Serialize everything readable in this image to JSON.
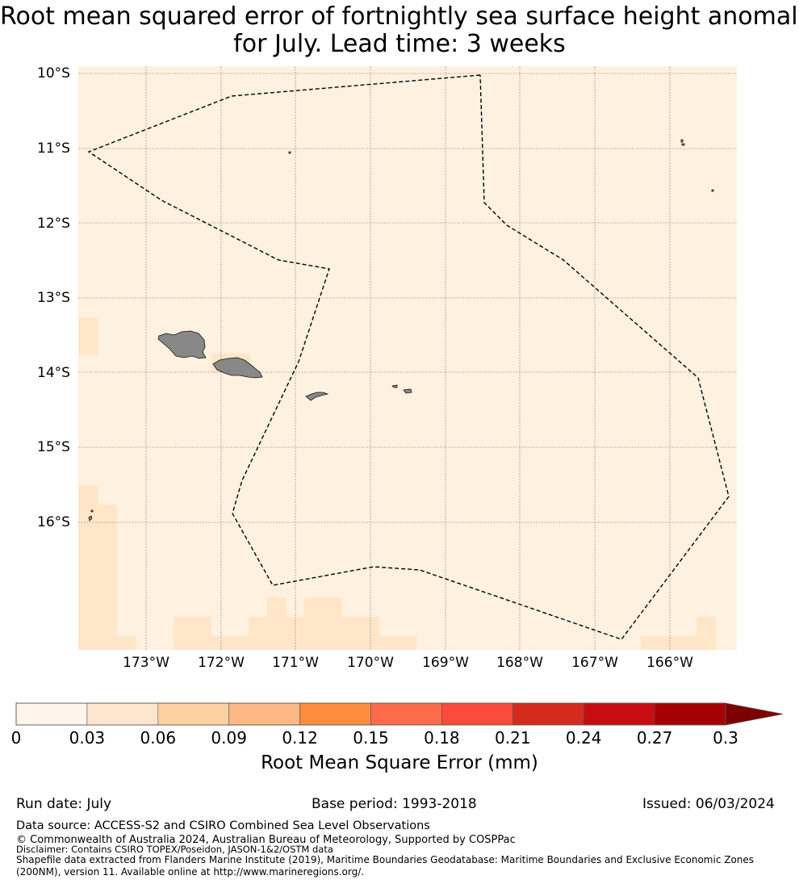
{
  "title": {
    "line1": "Root mean squared error of fortnightly sea surface height anomaly",
    "line2": "for July. Lead time: 3 weeks"
  },
  "map": {
    "lat_labels": [
      "10°S",
      "11°S",
      "12°S",
      "13°S",
      "14°S",
      "15°S",
      "16°S"
    ],
    "lon_labels": [
      "173°W",
      "172°W",
      "171°W",
      "170°W",
      "169°W",
      "168°W",
      "167°W",
      "166°W"
    ],
    "background_color": "#fff1df",
    "land_color": "#888888",
    "boundary_style": "dashed"
  },
  "colorbar": {
    "ticks": [
      "0",
      "0.03",
      "0.06",
      "0.09",
      "0.12",
      "0.15",
      "0.18",
      "0.21",
      "0.24",
      "0.27",
      "0.3"
    ],
    "colors": [
      "#fff5eb",
      "#fee6ce",
      "#fdd0a2",
      "#fdb884",
      "#fd8d3c",
      "#fc6b4c",
      "#fb4b3b",
      "#d52b1e",
      "#c70d12",
      "#a50003"
    ],
    "extend_color": "#7f0000",
    "label": "Root Mean Square Error (mm)"
  },
  "footer": {
    "run_date": "Run date: July",
    "base_period": "Base period: 1993-2018",
    "issued": "Issued: 06/03/2024",
    "data_source": "Data source: ACCESS-S2 and CSIRO Combined Sea Level Observations",
    "copyright": "© Commonwealth of Australia 2024, Australian Bureau of Meteorology, Supported by COSPPac",
    "disclaimer": "Disclaimer: Contains CSIRO TOPEX/Poseidon, JASON-1&2/OSTM data",
    "shapefile": "Shapefile data extracted from Flanders Marine Institute (2019), Maritime Boundaries Geodatabase: Maritime Boundaries and Exclusive Economic Zones (200NM), version 11. Available online at http://www.marineregions.org/."
  }
}
